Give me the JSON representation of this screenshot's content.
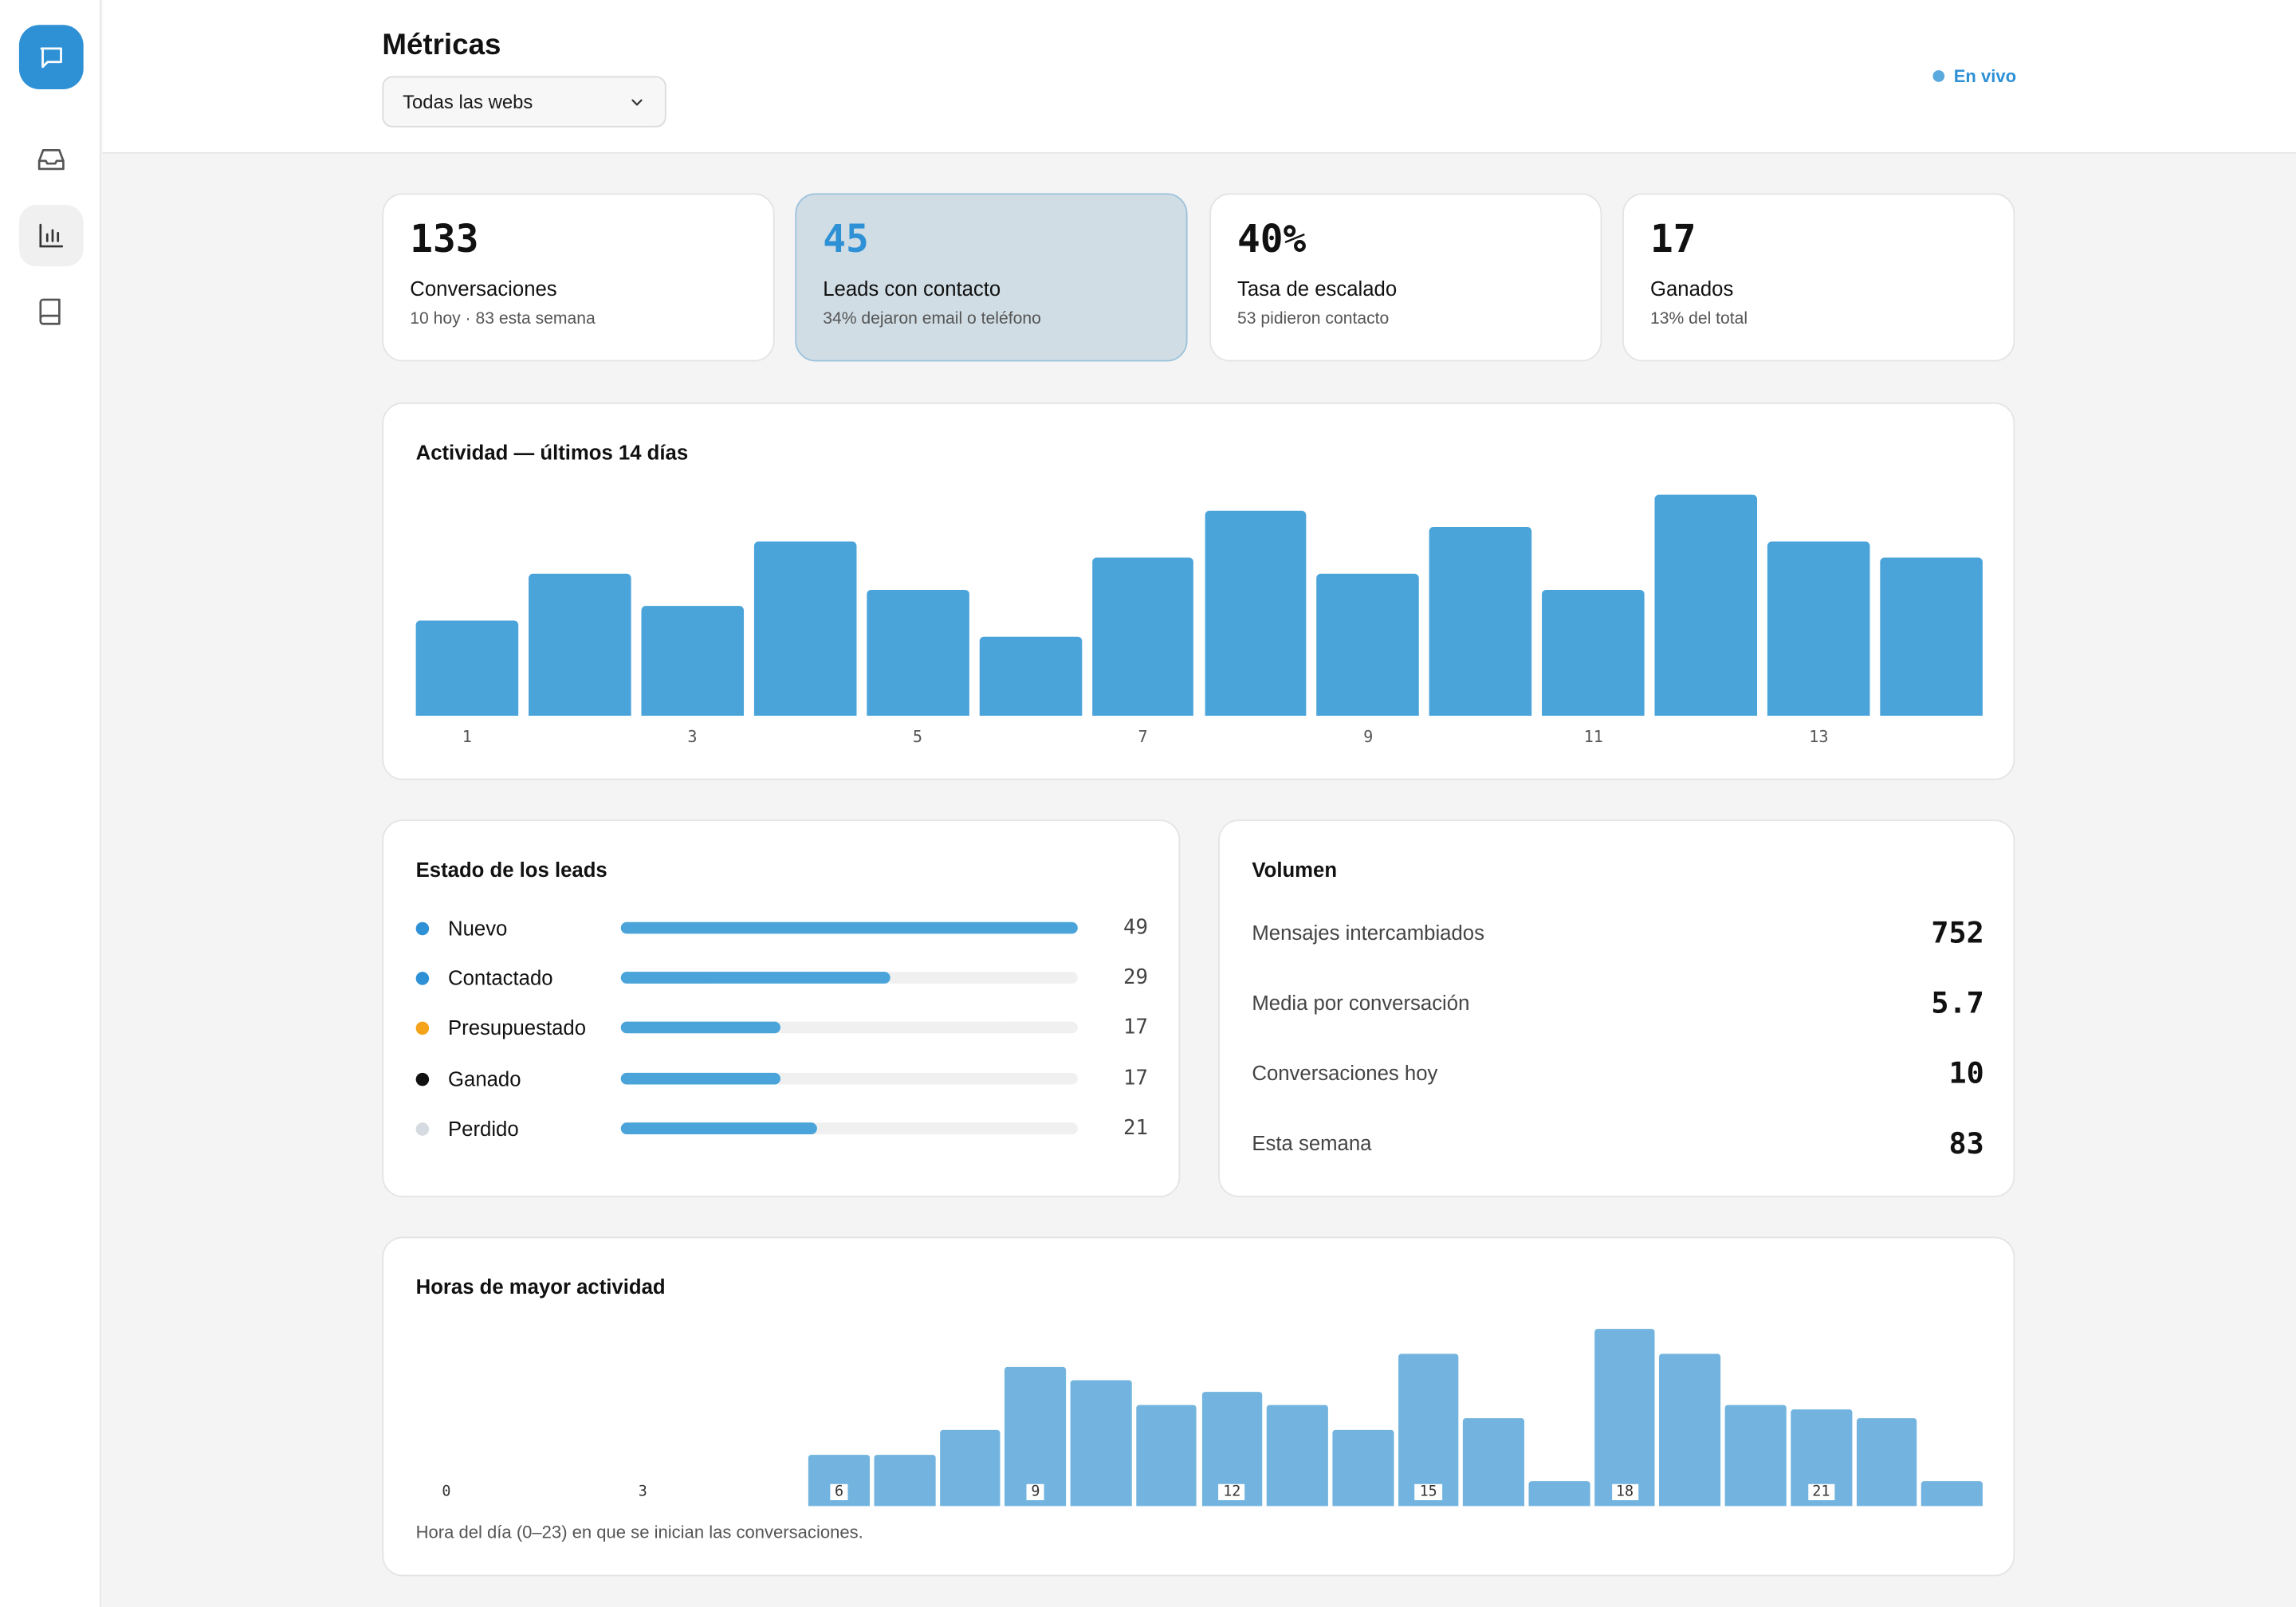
{
  "header": {
    "title": "Métricas",
    "site_select": "Todas las webs",
    "live_label": "En vivo"
  },
  "sidebar": {
    "items": [
      {
        "icon": "chat-icon",
        "label": "Chat"
      },
      {
        "icon": "inbox-icon",
        "label": "Bandeja"
      },
      {
        "icon": "bar-chart-icon",
        "label": "Métricas"
      },
      {
        "icon": "book-icon",
        "label": "Conocimiento"
      }
    ]
  },
  "stats": [
    {
      "value": "133",
      "label": "Conversaciones",
      "sub": "10 hoy · 83 esta semana"
    },
    {
      "value": "45",
      "label": "Leads con contacto",
      "sub": "34% dejaron email o teléfono"
    },
    {
      "value": "40%",
      "label": "Tasa de escalado",
      "sub": "53 pidieron contacto"
    },
    {
      "value": "17",
      "label": "Ganados",
      "sub": "13% del total"
    }
  ],
  "activity": {
    "title": "Actividad — últimos 14 días"
  },
  "leads": {
    "title": "Estado de los leads",
    "items": [
      {
        "name": "Nuevo",
        "count": "49",
        "color": "#2e91d6"
      },
      {
        "name": "Contactado",
        "count": "29",
        "color": "#2e91d6"
      },
      {
        "name": "Presupuestado",
        "count": "17",
        "color": "#f5a31a"
      },
      {
        "name": "Ganado",
        "count": "17",
        "color": "#111111"
      },
      {
        "name": "Perdido",
        "count": "21",
        "color": "#d5dbe0"
      }
    ]
  },
  "volume": {
    "title": "Volumen",
    "rows": [
      {
        "label": "Mensajes intercambiados",
        "value": "752"
      },
      {
        "label": "Media por conversación",
        "value": "5.7"
      },
      {
        "label": "Conversaciones hoy",
        "value": "10"
      },
      {
        "label": "Esta semana",
        "value": "83"
      }
    ]
  },
  "hours": {
    "title": "Horas de mayor actividad",
    "caption": "Hora del día (0–23) en que se inician las conversaciones."
  },
  "chart_data": [
    {
      "type": "bar",
      "title": "Actividad — últimos 14 días",
      "categories": [
        "1",
        "2",
        "3",
        "4",
        "5",
        "6",
        "7",
        "8",
        "9",
        "10",
        "11",
        "12",
        "13",
        "14"
      ],
      "tick_labels": [
        "1",
        "3",
        "5",
        "7",
        "9",
        "11",
        "13"
      ],
      "values": [
        6,
        9,
        7,
        11,
        8,
        5,
        10,
        13,
        9,
        12,
        8,
        14,
        11,
        10
      ],
      "color": "#4aa4da",
      "grid": false
    },
    {
      "type": "bar",
      "title": "Horas de mayor actividad",
      "categories": [
        "0",
        "1",
        "2",
        "3",
        "4",
        "5",
        "6",
        "7",
        "8",
        "9",
        "10",
        "11",
        "12",
        "13",
        "14",
        "15",
        "16",
        "17",
        "18",
        "19",
        "20",
        "21",
        "22",
        "23"
      ],
      "tick_labels": [
        "0",
        "3",
        "6",
        "9",
        "12",
        "15",
        "18",
        "21"
      ],
      "values": [
        0,
        0,
        0,
        0,
        0,
        0,
        2,
        2,
        3,
        5.5,
        5,
        4,
        4.5,
        4,
        3,
        6,
        3.5,
        1,
        7,
        6,
        4,
        3.8,
        3.5,
        1
      ],
      "color": "#72b4df",
      "xlabel": "Hora del día (0–23) en que se inician las conversaciones.",
      "grid": false
    }
  ],
  "lead_ratios": [
    1.0,
    0.59,
    0.35,
    0.35,
    0.43
  ]
}
